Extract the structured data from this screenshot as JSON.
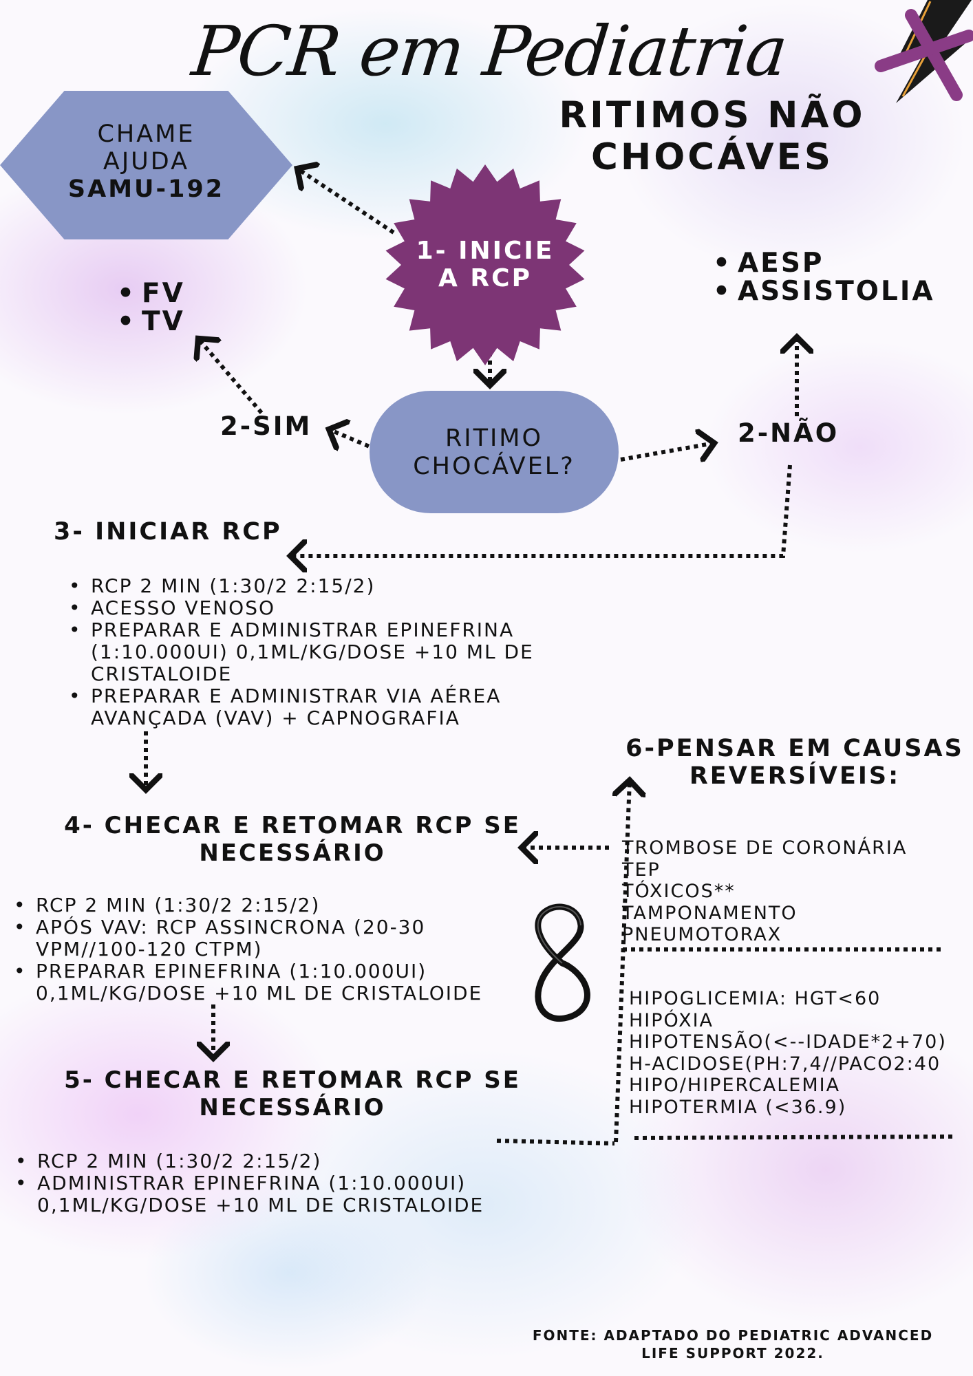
{
  "title": "PCR em Pediatria",
  "subtitle": {
    "line1": "RITIMOS  NÃO",
    "line2": "CHOCÁVES"
  },
  "call_help": {
    "line1": "CHAME",
    "line2": "AJUDA",
    "line3": "SAMU-192"
  },
  "step1": {
    "line1": "1- INICIE",
    "line2": "A RCP"
  },
  "decision": {
    "line1": "RITIMO",
    "line2": "CHOCÁVEL?"
  },
  "yes_label": "2-SIM",
  "no_label": "2-NÃO",
  "shockable": [
    "FV",
    "TV"
  ],
  "non_shockable": [
    "AESP",
    "ASSISTOLIA"
  ],
  "step3": {
    "title": "3- INICIAR RCP",
    "items": [
      "RCP 2 MIN (1:30/2    2:15/2)",
      "ACESSO VENOSO",
      "PREPARAR E ADMINISTRAR EPINEFRINA (1:10.000UI) 0,1ML/KG/DOSE +10 ML DE CRISTALOIDE",
      "PREPARAR E ADMINISTRAR VIA AÉREA AVANÇADA (VAV) + CAPNOGRAFIA"
    ]
  },
  "step4": {
    "title_line1": "4-  CHECAR E RETOMAR RCP SE",
    "title_line2": "NECESSÁRIO",
    "items": [
      "RCP 2 MIN (1:30/2    2:15/2)",
      "APÓS VAV: RCP ASSINCRONA (20-30 VPM//100-120 CTPM)",
      "PREPARAR  EPINEFRINA (1:10.000UI) 0,1ML/KG/DOSE +10 ML DE CRISTALOIDE"
    ]
  },
  "step5": {
    "title_line1": "5-  CHECAR E RETOMAR RCP SE",
    "title_line2": "NECESSÁRIO",
    "items": [
      "RCP 2 MIN (1:30/2    2:15/2)",
      "ADMINISTRAR EPINEFRINA (1:10.000UI) 0,1ML/KG/DOSE +10 ML DE CRISTALOIDE"
    ]
  },
  "step6": {
    "title_line1": "6-PENSAR EM CAUSAS",
    "title_line2": "REVERSÍVEIS:",
    "t_causes": [
      "TROMBOSE DE CORONÁRIA",
      "TEP",
      "TÓXICOS**",
      "TAMPONAMENTO",
      "PNEUMOTORAX"
    ],
    "h_causes": [
      "HIPOGLICEMIA: HGT<60",
      "HIPÓXIA",
      "HIPOTENSÃO(<--IDADE*2+70)",
      "H-ACIDOSE(PH:7,4//PACO2:40",
      "HIPO/HIPERCALEMIA",
      "HIPOTERMIA (<36.9)"
    ]
  },
  "infinity_symbol": "8",
  "footer": {
    "line1": "FONTE: ADAPTADO DO PEDIATRIC ADVANCED",
    "line2": "LIFE SUPPORT 2022."
  },
  "colors": {
    "hexagon": "#8896c6",
    "star": "#7d3575",
    "pill": "#8896c6",
    "text": "#111111",
    "lightning": "#1a1a1a",
    "lightning_accent": "#e8a13a",
    "x_mark": "#8a3c86"
  },
  "icons": [
    "lightning-x-icon",
    "infinity-icon"
  ]
}
